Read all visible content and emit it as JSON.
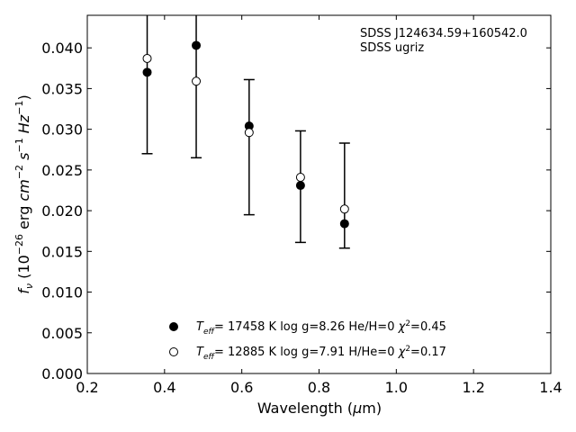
{
  "chart_data": {
    "type": "scatter",
    "xlabel": "Wavelength (μm)",
    "ylabel": "f_ν (10^-26 erg cm^-2 s^-1 Hz^-1)",
    "xlim": [
      0.2,
      1.4
    ],
    "ylim": [
      0.0,
      0.044
    ],
    "xticks": [
      "0.2",
      "0.4",
      "0.6",
      "0.8",
      "1.0",
      "1.2",
      "1.4"
    ],
    "yticks": [
      "0.000",
      "0.005",
      "0.010",
      "0.015",
      "0.020",
      "0.025",
      "0.030",
      "0.035",
      "0.040"
    ],
    "annotations": [
      "SDSS J124634.59+160542.0",
      "SDSS ugriz"
    ],
    "observed": {
      "x": [
        0.355,
        0.482,
        0.619,
        0.752,
        0.866
      ],
      "y": [
        0.037,
        0.0403,
        0.0304,
        0.0231,
        0.0184
      ],
      "err_low": [
        0.027,
        0.0265,
        0.0195,
        0.0161,
        0.0154
      ],
      "err_high": [
        0.0443,
        0.0443,
        0.0361,
        0.0298,
        0.0283
      ]
    },
    "series": [
      {
        "name": "T_eff= 17458 K  log g=8.26  He/H=0  χ²=0.45",
        "marker": "filled",
        "x": [
          0.355,
          0.482,
          0.619,
          0.752,
          0.866
        ],
        "y": [
          0.037,
          0.0403,
          0.0304,
          0.0231,
          0.0184
        ]
      },
      {
        "name": "T_eff= 12885 K  log g=7.91  H/He=0  χ²=0.17",
        "marker": "open",
        "x": [
          0.355,
          0.482,
          0.619,
          0.752,
          0.866
        ],
        "y": [
          0.0387,
          0.0359,
          0.0296,
          0.0241,
          0.0202
        ]
      }
    ],
    "legend": [
      {
        "teff": "17458",
        "logg": "log g=8.26",
        "comp": "He/H=0",
        "chi": "=0.45"
      },
      {
        "teff": "12885",
        "logg": "log g=7.91",
        "comp": "H/He=0",
        "chi": "=0.17"
      }
    ],
    "grid": false,
    "legend_position": "lower-center"
  }
}
